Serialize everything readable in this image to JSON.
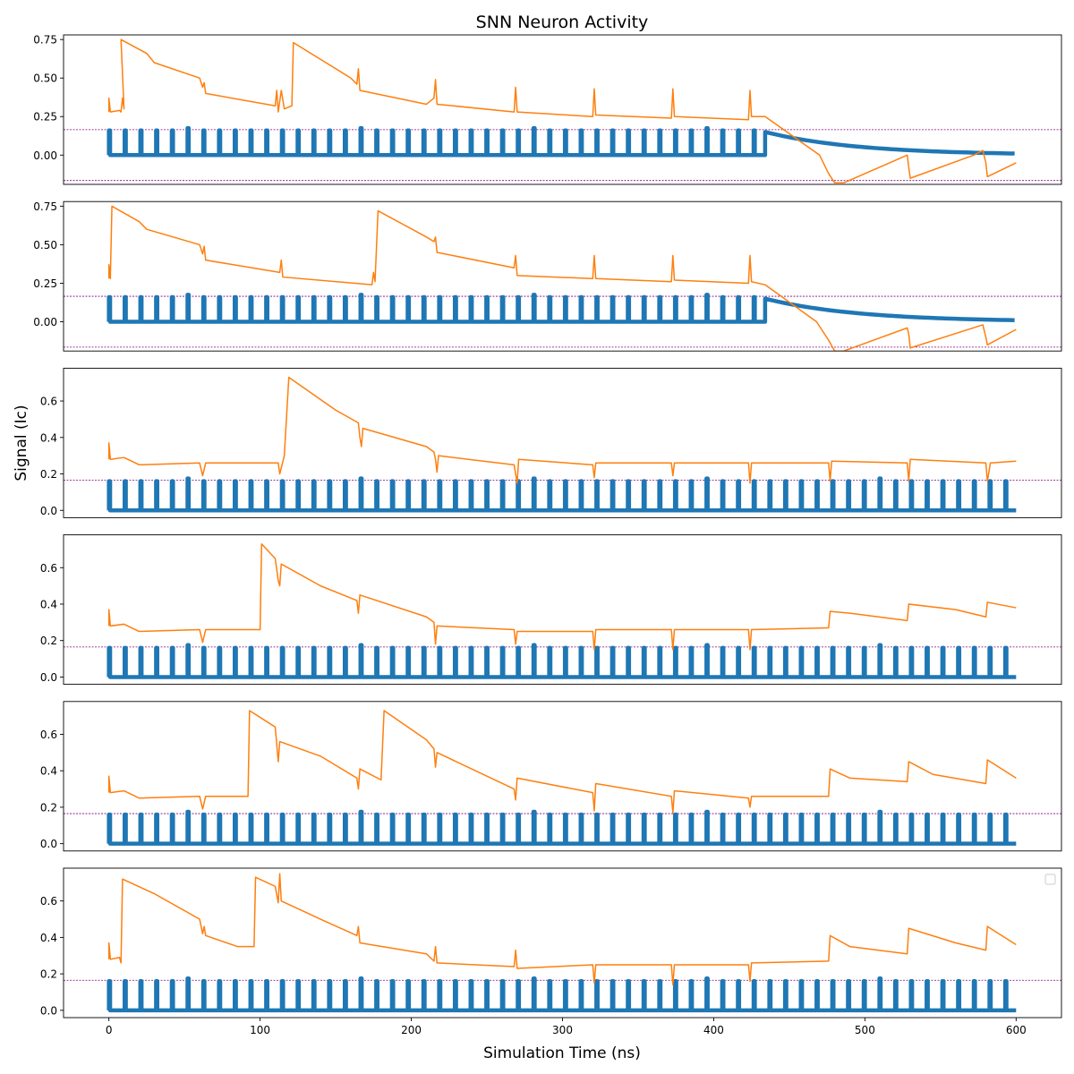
{
  "chart_data": {
    "type": "line",
    "title": "SNN Neuron Activity",
    "xlabel": "Simulation Time (ns)",
    "ylabel": "Signal (Ic)",
    "xlim": [
      -30,
      630
    ],
    "x_ticks": [
      0,
      100,
      200,
      300,
      400,
      500,
      600
    ],
    "x_tick_labels": [
      "0",
      "100",
      "200",
      "300",
      "400",
      "500",
      "600"
    ],
    "grid": false,
    "legend": "upper right, empty",
    "colors": {
      "pulse": "#1f77b4",
      "membrane": "#ff7f0e",
      "threshold": "#800080"
    },
    "pulse_period_ns": 10.4,
    "pulse_width_ns": 0.8,
    "input_window_ns": [
      0,
      434
    ],
    "subplots": [
      {
        "ylim": [
          -0.19,
          0.78
        ],
        "y_ticks": [
          0.0,
          0.25,
          0.5,
          0.75
        ],
        "y_tick_labels": [
          "0.00",
          "0.25",
          "0.50",
          "0.75"
        ],
        "thresholds": [
          0.165,
          -0.165
        ],
        "pulse_height": 0.16,
        "pulse_stop_ns": 434,
        "decay_tail": {
          "start_value": 0.15,
          "end_value": 0.01,
          "start": 434,
          "end": 600
        },
        "membrane": [
          [
            0,
            0.28
          ],
          [
            0,
            0.37
          ],
          [
            1,
            0.28
          ],
          [
            7,
            0.29
          ],
          [
            8,
            0.28
          ],
          [
            9,
            0.37
          ],
          [
            10,
            0.3
          ],
          [
            8,
            0.75
          ],
          [
            25,
            0.66
          ],
          [
            30,
            0.6
          ],
          [
            60,
            0.5
          ],
          [
            62,
            0.44
          ],
          [
            63,
            0.47
          ],
          [
            64,
            0.4
          ],
          [
            110,
            0.32
          ],
          [
            111,
            0.42
          ],
          [
            112,
            0.28
          ],
          [
            114,
            0.42
          ],
          [
            116,
            0.3
          ],
          [
            121,
            0.32
          ],
          [
            122,
            0.73
          ],
          [
            160,
            0.5
          ],
          [
            164,
            0.46
          ],
          [
            165,
            0.56
          ],
          [
            166,
            0.42
          ],
          [
            210,
            0.33
          ],
          [
            215,
            0.37
          ],
          [
            216,
            0.49
          ],
          [
            217,
            0.33
          ],
          [
            268,
            0.28
          ],
          [
            269,
            0.44
          ],
          [
            270,
            0.28
          ],
          [
            320,
            0.25
          ],
          [
            321,
            0.43
          ],
          [
            322,
            0.26
          ],
          [
            372,
            0.24
          ],
          [
            373,
            0.43
          ],
          [
            374,
            0.25
          ],
          [
            423,
            0.23
          ],
          [
            424,
            0.42
          ],
          [
            425,
            0.25
          ],
          [
            434,
            0.25
          ],
          [
            470,
            0.0
          ],
          [
            476,
            -0.12
          ],
          [
            480,
            -0.18
          ],
          [
            486,
            -0.18
          ],
          [
            528,
            0.0
          ],
          [
            529,
            -0.08
          ],
          [
            530,
            -0.15
          ],
          [
            572,
            0.0
          ],
          [
            578,
            0.03
          ],
          [
            580,
            -0.05
          ],
          [
            581,
            -0.14
          ],
          [
            600,
            -0.05
          ]
        ]
      },
      {
        "ylim": [
          -0.19,
          0.78
        ],
        "y_ticks": [
          0.0,
          0.25,
          0.5,
          0.75
        ],
        "y_tick_labels": [
          "0.00",
          "0.25",
          "0.50",
          "0.75"
        ],
        "thresholds": [
          0.165,
          -0.165
        ],
        "pulse_height": 0.16,
        "pulse_stop_ns": 434,
        "decay_tail": {
          "start_value": 0.15,
          "end_value": 0.01,
          "start": 434,
          "end": 600
        },
        "membrane": [
          [
            0,
            0.28
          ],
          [
            0,
            0.37
          ],
          [
            1,
            0.28
          ],
          [
            1,
            0.3
          ],
          [
            2,
            0.75
          ],
          [
            20,
            0.65
          ],
          [
            25,
            0.6
          ],
          [
            60,
            0.5
          ],
          [
            62,
            0.44
          ],
          [
            63,
            0.49
          ],
          [
            64,
            0.4
          ],
          [
            113,
            0.32
          ],
          [
            114,
            0.4
          ],
          [
            115,
            0.29
          ],
          [
            174,
            0.24
          ],
          [
            175,
            0.32
          ],
          [
            176,
            0.26
          ],
          [
            178,
            0.72
          ],
          [
            210,
            0.55
          ],
          [
            215,
            0.52
          ],
          [
            216,
            0.55
          ],
          [
            217,
            0.45
          ],
          [
            268,
            0.35
          ],
          [
            269,
            0.43
          ],
          [
            270,
            0.3
          ],
          [
            320,
            0.28
          ],
          [
            321,
            0.43
          ],
          [
            322,
            0.28
          ],
          [
            372,
            0.26
          ],
          [
            373,
            0.43
          ],
          [
            374,
            0.27
          ],
          [
            423,
            0.25
          ],
          [
            424,
            0.43
          ],
          [
            425,
            0.26
          ],
          [
            434,
            0.24
          ],
          [
            468,
            0.0
          ],
          [
            476,
            -0.12
          ],
          [
            480,
            -0.19
          ],
          [
            486,
            -0.19
          ],
          [
            528,
            -0.04
          ],
          [
            529,
            -0.08
          ],
          [
            530,
            -0.17
          ],
          [
            578,
            -0.02
          ],
          [
            580,
            -0.1
          ],
          [
            581,
            -0.15
          ],
          [
            600,
            -0.05
          ]
        ]
      },
      {
        "ylim": [
          -0.04,
          0.78
        ],
        "y_ticks": [
          0.0,
          0.2,
          0.4,
          0.6
        ],
        "y_tick_labels": [
          "0.0",
          "0.2",
          "0.4",
          "0.6"
        ],
        "thresholds": [
          0.165
        ],
        "pulse_height": 0.16,
        "pulse_stop_ns": 600,
        "decay_tail": null,
        "membrane": [
          [
            0,
            0.28
          ],
          [
            0,
            0.37
          ],
          [
            1,
            0.28
          ],
          [
            10,
            0.29
          ],
          [
            20,
            0.25
          ],
          [
            60,
            0.26
          ],
          [
            62,
            0.19
          ],
          [
            64,
            0.26
          ],
          [
            112,
            0.26
          ],
          [
            113,
            0.2
          ],
          [
            116,
            0.3
          ],
          [
            119,
            0.73
          ],
          [
            150,
            0.55
          ],
          [
            165,
            0.48
          ],
          [
            166,
            0.4
          ],
          [
            167,
            0.35
          ],
          [
            168,
            0.45
          ],
          [
            210,
            0.35
          ],
          [
            215,
            0.32
          ],
          [
            216,
            0.28
          ],
          [
            217,
            0.21
          ],
          [
            218,
            0.3
          ],
          [
            268,
            0.25
          ],
          [
            269,
            0.2
          ],
          [
            270,
            0.15
          ],
          [
            271,
            0.28
          ],
          [
            320,
            0.25
          ],
          [
            321,
            0.18
          ],
          [
            322,
            0.26
          ],
          [
            372,
            0.26
          ],
          [
            373,
            0.19
          ],
          [
            374,
            0.26
          ],
          [
            423,
            0.26
          ],
          [
            424,
            0.15
          ],
          [
            425,
            0.26
          ],
          [
            476,
            0.26
          ],
          [
            477,
            0.16
          ],
          [
            478,
            0.27
          ],
          [
            528,
            0.26
          ],
          [
            529,
            0.16
          ],
          [
            530,
            0.28
          ],
          [
            580,
            0.26
          ],
          [
            581,
            0.16
          ],
          [
            583,
            0.26
          ],
          [
            600,
            0.27
          ]
        ]
      },
      {
        "ylim": [
          -0.04,
          0.78
        ],
        "y_ticks": [
          0.0,
          0.2,
          0.4,
          0.6
        ],
        "y_tick_labels": [
          "0.0",
          "0.2",
          "0.4",
          "0.6"
        ],
        "thresholds": [
          0.165
        ],
        "pulse_height": 0.16,
        "pulse_stop_ns": 600,
        "decay_tail": null,
        "membrane": [
          [
            0,
            0.28
          ],
          [
            0,
            0.37
          ],
          [
            1,
            0.28
          ],
          [
            10,
            0.29
          ],
          [
            20,
            0.25
          ],
          [
            60,
            0.26
          ],
          [
            62,
            0.19
          ],
          [
            64,
            0.26
          ],
          [
            100,
            0.26
          ],
          [
            101,
            0.73
          ],
          [
            110,
            0.65
          ],
          [
            112,
            0.53
          ],
          [
            113,
            0.5
          ],
          [
            114,
            0.62
          ],
          [
            140,
            0.5
          ],
          [
            164,
            0.42
          ],
          [
            165,
            0.35
          ],
          [
            166,
            0.45
          ],
          [
            210,
            0.33
          ],
          [
            215,
            0.3
          ],
          [
            216,
            0.18
          ],
          [
            217,
            0.28
          ],
          [
            268,
            0.26
          ],
          [
            269,
            0.18
          ],
          [
            270,
            0.25
          ],
          [
            320,
            0.25
          ],
          [
            321,
            0.15
          ],
          [
            322,
            0.26
          ],
          [
            372,
            0.26
          ],
          [
            373,
            0.15
          ],
          [
            374,
            0.26
          ],
          [
            423,
            0.26
          ],
          [
            424,
            0.15
          ],
          [
            425,
            0.26
          ],
          [
            476,
            0.27
          ],
          [
            477,
            0.36
          ],
          [
            490,
            0.35
          ],
          [
            528,
            0.31
          ],
          [
            529,
            0.4
          ],
          [
            560,
            0.37
          ],
          [
            580,
            0.33
          ],
          [
            581,
            0.41
          ],
          [
            600,
            0.38
          ]
        ]
      },
      {
        "ylim": [
          -0.04,
          0.78
        ],
        "y_ticks": [
          0.0,
          0.2,
          0.4,
          0.6
        ],
        "y_tick_labels": [
          "0.0",
          "0.2",
          "0.4",
          "0.6"
        ],
        "thresholds": [
          0.165
        ],
        "pulse_height": 0.16,
        "pulse_stop_ns": 600,
        "decay_tail": null,
        "membrane": [
          [
            0,
            0.28
          ],
          [
            0,
            0.37
          ],
          [
            1,
            0.28
          ],
          [
            10,
            0.29
          ],
          [
            20,
            0.25
          ],
          [
            60,
            0.26
          ],
          [
            62,
            0.19
          ],
          [
            64,
            0.26
          ],
          [
            92,
            0.26
          ],
          [
            93,
            0.73
          ],
          [
            110,
            0.64
          ],
          [
            112,
            0.45
          ],
          [
            113,
            0.56
          ],
          [
            140,
            0.48
          ],
          [
            164,
            0.36
          ],
          [
            165,
            0.3
          ],
          [
            166,
            0.41
          ],
          [
            180,
            0.35
          ],
          [
            182,
            0.73
          ],
          [
            210,
            0.57
          ],
          [
            215,
            0.52
          ],
          [
            216,
            0.42
          ],
          [
            217,
            0.5
          ],
          [
            268,
            0.3
          ],
          [
            269,
            0.24
          ],
          [
            270,
            0.36
          ],
          [
            320,
            0.28
          ],
          [
            321,
            0.18
          ],
          [
            322,
            0.33
          ],
          [
            372,
            0.26
          ],
          [
            373,
            0.17
          ],
          [
            374,
            0.29
          ],
          [
            423,
            0.25
          ],
          [
            424,
            0.2
          ],
          [
            425,
            0.26
          ],
          [
            476,
            0.26
          ],
          [
            477,
            0.41
          ],
          [
            490,
            0.36
          ],
          [
            528,
            0.34
          ],
          [
            529,
            0.45
          ],
          [
            545,
            0.38
          ],
          [
            580,
            0.33
          ],
          [
            581,
            0.46
          ],
          [
            600,
            0.36
          ]
        ]
      },
      {
        "ylim": [
          -0.04,
          0.78
        ],
        "y_ticks": [
          0.0,
          0.2,
          0.4,
          0.6
        ],
        "y_tick_labels": [
          "0.0",
          "0.2",
          "0.4",
          "0.6"
        ],
        "thresholds": [
          0.165
        ],
        "pulse_height": 0.16,
        "pulse_stop_ns": 600,
        "decay_tail": null,
        "membrane": [
          [
            0,
            0.28
          ],
          [
            0,
            0.37
          ],
          [
            1,
            0.28
          ],
          [
            7,
            0.29
          ],
          [
            8,
            0.26
          ],
          [
            9,
            0.72
          ],
          [
            30,
            0.64
          ],
          [
            60,
            0.5
          ],
          [
            62,
            0.42
          ],
          [
            63,
            0.46
          ],
          [
            64,
            0.41
          ],
          [
            85,
            0.35
          ],
          [
            96,
            0.35
          ],
          [
            97,
            0.73
          ],
          [
            110,
            0.68
          ],
          [
            112,
            0.59
          ],
          [
            113,
            0.75
          ],
          [
            114,
            0.6
          ],
          [
            140,
            0.5
          ],
          [
            164,
            0.41
          ],
          [
            165,
            0.46
          ],
          [
            166,
            0.37
          ],
          [
            210,
            0.31
          ],
          [
            215,
            0.27
          ],
          [
            216,
            0.35
          ],
          [
            217,
            0.26
          ],
          [
            268,
            0.24
          ],
          [
            269,
            0.33
          ],
          [
            270,
            0.23
          ],
          [
            320,
            0.25
          ],
          [
            321,
            0.15
          ],
          [
            322,
            0.25
          ],
          [
            372,
            0.25
          ],
          [
            373,
            0.14
          ],
          [
            374,
            0.25
          ],
          [
            423,
            0.25
          ],
          [
            424,
            0.16
          ],
          [
            425,
            0.26
          ],
          [
            476,
            0.27
          ],
          [
            477,
            0.41
          ],
          [
            490,
            0.35
          ],
          [
            528,
            0.31
          ],
          [
            529,
            0.45
          ],
          [
            560,
            0.37
          ],
          [
            580,
            0.33
          ],
          [
            581,
            0.46
          ],
          [
            600,
            0.36
          ]
        ]
      }
    ]
  }
}
